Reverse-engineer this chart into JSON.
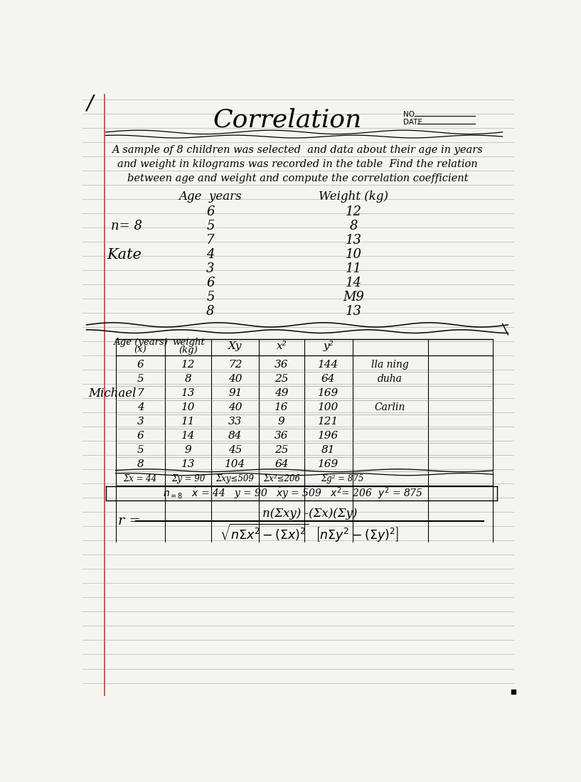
{
  "bg_color": "#f5f5f0",
  "title": "Correlation",
  "no_label": "NO.",
  "date_label": "DATE",
  "intro_text": [
    "A sample of 8 children was selected  and data about their age in years",
    "and weight in kilograms was recorded in the table  Find the relation",
    "between age and weight and compute the correlation coefficient"
  ],
  "first_table_data": [
    [
      "6",
      "12"
    ],
    [
      "5",
      "8"
    ],
    [
      "7",
      "13"
    ],
    [
      "4",
      "10"
    ],
    [
      "3",
      "11"
    ],
    [
      "6",
      "14"
    ],
    [
      "5",
      "Μ9"
    ],
    [
      "8",
      "13"
    ]
  ],
  "second_table_data": [
    [
      "6",
      "12",
      "72",
      "36",
      "144",
      "lla ning"
    ],
    [
      "5",
      "8",
      "40",
      "25",
      "64",
      "duha"
    ],
    [
      "7",
      "13",
      "91",
      "49",
      "169",
      ""
    ],
    [
      "4",
      "10",
      "40",
      "16",
      "100",
      "Carlin"
    ],
    [
      "3",
      "11",
      "33",
      "9",
      "121",
      ""
    ],
    [
      "6",
      "14",
      "84",
      "36",
      "196",
      ""
    ],
    [
      "5",
      "9",
      "45",
      "25",
      "81",
      ""
    ],
    [
      "8",
      "13",
      "104",
      "64",
      "169",
      ""
    ]
  ]
}
